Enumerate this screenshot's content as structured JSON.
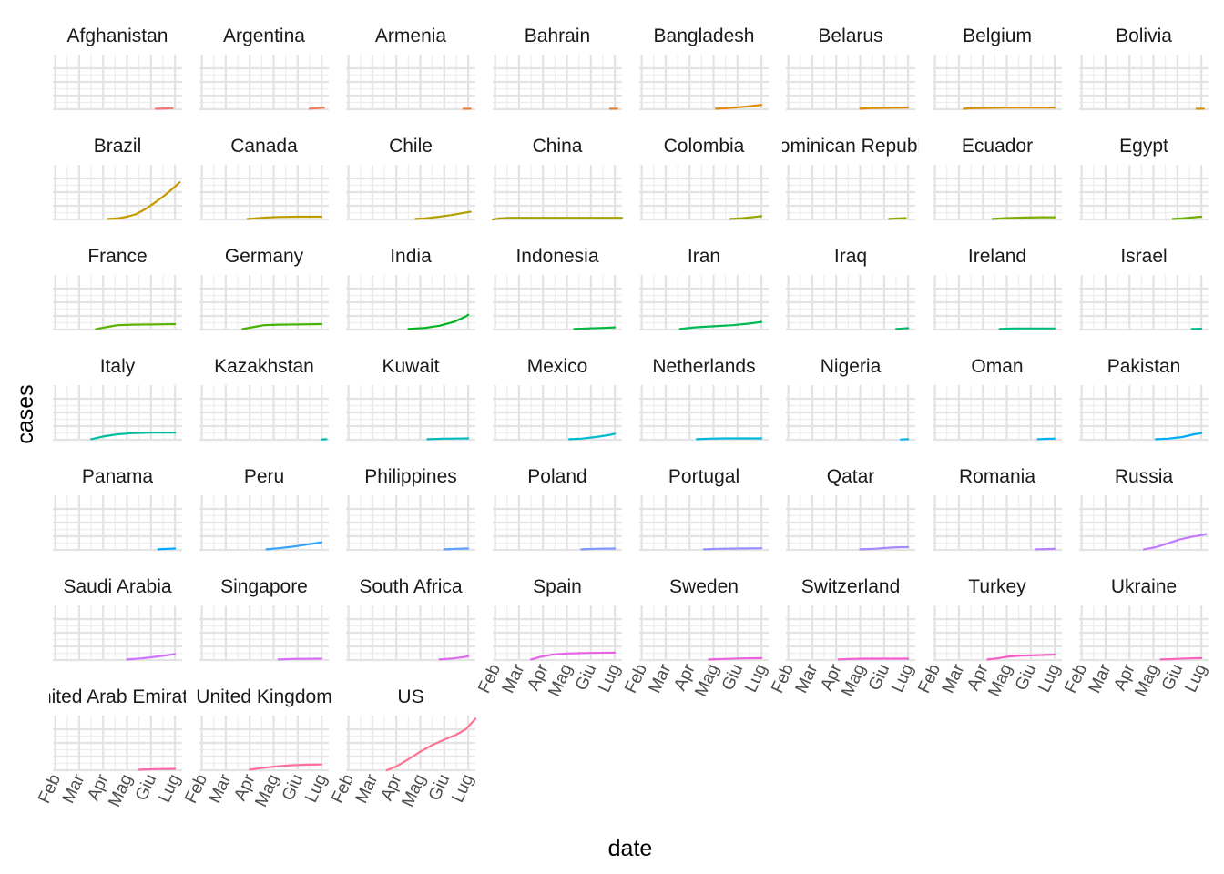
{
  "chart_data": {
    "type": "line",
    "layout": "facet-wrap",
    "xlabel": "date",
    "ylabel": "cases",
    "x_ticks": [
      "Feb",
      "Mar",
      "Apr",
      "Mag",
      "Giu",
      "Lug"
    ],
    "x_tick_months": [
      0,
      1,
      2,
      3,
      4,
      5
    ],
    "xlim_months": [
      -0.1,
      5.3
    ],
    "ylim": [
      0,
      1
    ],
    "y_gridlines": [
      0.25,
      0.5,
      0.75
    ],
    "legend": "none",
    "series": [
      {
        "name": "Afghanistan",
        "color": "#F8766D",
        "points": [
          [
            4.2,
            0.01
          ],
          [
            4.6,
            0.015
          ],
          [
            4.9,
            0.02
          ]
        ]
      },
      {
        "name": "Argentina",
        "color": "#F47A5A",
        "points": [
          [
            4.5,
            0.01
          ],
          [
            4.8,
            0.02
          ],
          [
            5.1,
            0.03
          ]
        ]
      },
      {
        "name": "Armenia",
        "color": "#EE7F3E",
        "points": [
          [
            4.8,
            0.01
          ],
          [
            5.1,
            0.012
          ]
        ]
      },
      {
        "name": "Bahrain",
        "color": "#E9842C",
        "points": [
          [
            4.8,
            0.01
          ],
          [
            5.1,
            0.012
          ]
        ]
      },
      {
        "name": "Bangladesh",
        "color": "#E38900",
        "points": [
          [
            3.1,
            0.01
          ],
          [
            3.5,
            0.02
          ],
          [
            4.0,
            0.035
          ],
          [
            4.5,
            0.055
          ],
          [
            5.0,
            0.08
          ]
        ]
      },
      {
        "name": "Belarus",
        "color": "#DD8D00",
        "points": [
          [
            3.0,
            0.01
          ],
          [
            3.4,
            0.02
          ],
          [
            4.0,
            0.025
          ],
          [
            4.5,
            0.028
          ],
          [
            5.0,
            0.03
          ]
        ]
      },
      {
        "name": "Belgium",
        "color": "#D69100",
        "points": [
          [
            1.2,
            0.01
          ],
          [
            1.6,
            0.02
          ],
          [
            2.2,
            0.025
          ],
          [
            3.0,
            0.03
          ],
          [
            4.0,
            0.03
          ],
          [
            5.0,
            0.03
          ]
        ]
      },
      {
        "name": "Bolivia",
        "color": "#CF9400",
        "points": [
          [
            4.8,
            0.01
          ],
          [
            5.1,
            0.012
          ]
        ]
      },
      {
        "name": "Brazil",
        "color": "#C49A00",
        "points": [
          [
            2.2,
            0.01
          ],
          [
            2.6,
            0.02
          ],
          [
            3.0,
            0.05
          ],
          [
            3.4,
            0.1
          ],
          [
            3.8,
            0.2
          ],
          [
            4.2,
            0.32
          ],
          [
            4.6,
            0.45
          ],
          [
            5.0,
            0.6
          ],
          [
            5.2,
            0.68
          ]
        ]
      },
      {
        "name": "Canada",
        "color": "#BB9D00",
        "points": [
          [
            1.9,
            0.01
          ],
          [
            2.2,
            0.02
          ],
          [
            2.7,
            0.035
          ],
          [
            3.2,
            0.045
          ],
          [
            4.0,
            0.05
          ],
          [
            5.0,
            0.05
          ]
        ]
      },
      {
        "name": "Chile",
        "color": "#B1A000",
        "points": [
          [
            2.8,
            0.01
          ],
          [
            3.2,
            0.02
          ],
          [
            3.8,
            0.05
          ],
          [
            4.3,
            0.08
          ],
          [
            4.8,
            0.12
          ],
          [
            5.1,
            0.14
          ]
        ]
      },
      {
        "name": "China",
        "color": "#A6A300",
        "points": [
          [
            -0.1,
            0.0
          ],
          [
            0.2,
            0.02
          ],
          [
            0.6,
            0.03
          ],
          [
            1.5,
            0.03
          ],
          [
            3.0,
            0.03
          ],
          [
            5.3,
            0.03
          ]
        ]
      },
      {
        "name": "Colombia",
        "color": "#9AA600",
        "points": [
          [
            3.7,
            0.01
          ],
          [
            4.1,
            0.02
          ],
          [
            4.6,
            0.04
          ],
          [
            5.0,
            0.06
          ]
        ]
      },
      {
        "name": "Dominican Republic",
        "color": "#8DA900",
        "points": [
          [
            4.2,
            0.01
          ],
          [
            4.6,
            0.02
          ],
          [
            4.9,
            0.025
          ]
        ]
      },
      {
        "name": "Ecuador",
        "color": "#7FAC00",
        "points": [
          [
            2.4,
            0.01
          ],
          [
            3.0,
            0.025
          ],
          [
            3.8,
            0.035
          ],
          [
            4.5,
            0.04
          ],
          [
            5.0,
            0.04
          ]
        ]
      },
      {
        "name": "Egypt",
        "color": "#6FAE00",
        "points": [
          [
            3.8,
            0.01
          ],
          [
            4.2,
            0.02
          ],
          [
            4.7,
            0.04
          ],
          [
            5.0,
            0.05
          ]
        ]
      },
      {
        "name": "France",
        "color": "#5DB100",
        "points": [
          [
            1.7,
            0.01
          ],
          [
            2.2,
            0.05
          ],
          [
            2.6,
            0.08
          ],
          [
            3.2,
            0.09
          ],
          [
            4.2,
            0.095
          ],
          [
            5.0,
            0.1
          ]
        ]
      },
      {
        "name": "Germany",
        "color": "#45B300",
        "points": [
          [
            1.7,
            0.01
          ],
          [
            2.2,
            0.05
          ],
          [
            2.6,
            0.08
          ],
          [
            3.2,
            0.09
          ],
          [
            4.2,
            0.095
          ],
          [
            5.0,
            0.1
          ]
        ]
      },
      {
        "name": "India",
        "color": "#00B520",
        "points": [
          [
            2.5,
            0.01
          ],
          [
            3.2,
            0.03
          ],
          [
            3.8,
            0.07
          ],
          [
            4.4,
            0.14
          ],
          [
            4.9,
            0.24
          ],
          [
            5.0,
            0.27
          ]
        ]
      },
      {
        "name": "Indonesia",
        "color": "#00B73F",
        "points": [
          [
            3.3,
            0.01
          ],
          [
            3.8,
            0.02
          ],
          [
            4.5,
            0.03
          ],
          [
            5.0,
            0.04
          ]
        ]
      },
      {
        "name": "Iran",
        "color": "#00B956",
        "points": [
          [
            1.6,
            0.01
          ],
          [
            2.2,
            0.04
          ],
          [
            3.0,
            0.06
          ],
          [
            3.8,
            0.08
          ],
          [
            4.5,
            0.11
          ],
          [
            5.0,
            0.14
          ]
        ]
      },
      {
        "name": "Iraq",
        "color": "#00BA6A",
        "points": [
          [
            4.5,
            0.01
          ],
          [
            4.8,
            0.02
          ],
          [
            5.0,
            0.025
          ]
        ]
      },
      {
        "name": "Ireland",
        "color": "#00BB7D",
        "points": [
          [
            2.7,
            0.01
          ],
          [
            3.2,
            0.02
          ],
          [
            4.0,
            0.02
          ],
          [
            5.0,
            0.02
          ]
        ]
      },
      {
        "name": "Israel",
        "color": "#00BC8F",
        "points": [
          [
            4.6,
            0.01
          ],
          [
            4.9,
            0.015
          ],
          [
            5.0,
            0.015
          ]
        ]
      },
      {
        "name": "Italy",
        "color": "#00BDA0",
        "points": [
          [
            1.5,
            0.01
          ],
          [
            2.0,
            0.06
          ],
          [
            2.6,
            0.1
          ],
          [
            3.2,
            0.12
          ],
          [
            4.0,
            0.13
          ],
          [
            5.0,
            0.13
          ]
        ]
      },
      {
        "name": "Kazakhstan",
        "color": "#00BDB0",
        "points": [
          [
            5.0,
            0.005
          ],
          [
            5.2,
            0.01
          ]
        ]
      },
      {
        "name": "Kuwait",
        "color": "#00BCC0",
        "points": [
          [
            3.3,
            0.01
          ],
          [
            4.0,
            0.02
          ],
          [
            5.0,
            0.025
          ]
        ]
      },
      {
        "name": "Mexico",
        "color": "#00BACE",
        "points": [
          [
            3.1,
            0.01
          ],
          [
            3.6,
            0.02
          ],
          [
            4.2,
            0.05
          ],
          [
            4.8,
            0.09
          ],
          [
            5.0,
            0.11
          ]
        ]
      },
      {
        "name": "Netherlands",
        "color": "#00B8DC",
        "points": [
          [
            2.3,
            0.01
          ],
          [
            2.8,
            0.02
          ],
          [
            3.5,
            0.025
          ],
          [
            5.0,
            0.025
          ]
        ]
      },
      {
        "name": "Nigeria",
        "color": "#00B5E8",
        "points": [
          [
            4.7,
            0.005
          ],
          [
            5.0,
            0.012
          ]
        ]
      },
      {
        "name": "Oman",
        "color": "#00B1F3",
        "points": [
          [
            4.3,
            0.01
          ],
          [
            4.8,
            0.02
          ],
          [
            5.0,
            0.02
          ]
        ]
      },
      {
        "name": "Pakistan",
        "color": "#00ADFA",
        "points": [
          [
            3.1,
            0.01
          ],
          [
            3.6,
            0.02
          ],
          [
            4.2,
            0.05
          ],
          [
            4.7,
            0.1
          ],
          [
            5.0,
            0.12
          ]
        ]
      },
      {
        "name": "Panama",
        "color": "#00A8FF",
        "points": [
          [
            4.3,
            0.01
          ],
          [
            4.7,
            0.02
          ],
          [
            5.0,
            0.025
          ]
        ]
      },
      {
        "name": "Peru",
        "color": "#35A2FF",
        "points": [
          [
            2.7,
            0.01
          ],
          [
            3.2,
            0.03
          ],
          [
            3.8,
            0.06
          ],
          [
            4.4,
            0.1
          ],
          [
            5.0,
            0.14
          ]
        ]
      },
      {
        "name": "Philippines",
        "color": "#619CFF",
        "points": [
          [
            4.0,
            0.01
          ],
          [
            4.5,
            0.02
          ],
          [
            5.0,
            0.025
          ]
        ]
      },
      {
        "name": "Poland",
        "color": "#7E96FF",
        "points": [
          [
            3.6,
            0.01
          ],
          [
            4.2,
            0.02
          ],
          [
            5.0,
            0.025
          ]
        ]
      },
      {
        "name": "Portugal",
        "color": "#948FFF",
        "points": [
          [
            2.6,
            0.01
          ],
          [
            3.2,
            0.02
          ],
          [
            4.0,
            0.025
          ],
          [
            5.0,
            0.03
          ]
        ]
      },
      {
        "name": "Qatar",
        "color": "#A688FF",
        "points": [
          [
            3.0,
            0.01
          ],
          [
            3.6,
            0.02
          ],
          [
            4.2,
            0.04
          ],
          [
            4.7,
            0.05
          ],
          [
            5.0,
            0.05
          ]
        ]
      },
      {
        "name": "Romania",
        "color": "#B581FF",
        "points": [
          [
            4.2,
            0.01
          ],
          [
            4.6,
            0.015
          ],
          [
            5.0,
            0.02
          ]
        ]
      },
      {
        "name": "Russia",
        "color": "#C17AFF",
        "points": [
          [
            2.6,
            0.01
          ],
          [
            3.1,
            0.05
          ],
          [
            3.6,
            0.12
          ],
          [
            4.1,
            0.19
          ],
          [
            4.6,
            0.24
          ],
          [
            5.0,
            0.27
          ],
          [
            5.2,
            0.29
          ]
        ]
      },
      {
        "name": "Saudi Arabia",
        "color": "#CC74FB",
        "points": [
          [
            3.0,
            0.01
          ],
          [
            3.6,
            0.03
          ],
          [
            4.2,
            0.06
          ],
          [
            4.7,
            0.09
          ],
          [
            5.0,
            0.11
          ]
        ]
      },
      {
        "name": "Singapore",
        "color": "#D56DF5",
        "points": [
          [
            3.2,
            0.01
          ],
          [
            3.8,
            0.02
          ],
          [
            5.0,
            0.025
          ]
        ]
      },
      {
        "name": "South Africa",
        "color": "#DE67EE",
        "points": [
          [
            3.8,
            0.01
          ],
          [
            4.4,
            0.03
          ],
          [
            4.9,
            0.06
          ],
          [
            5.0,
            0.07
          ]
        ]
      },
      {
        "name": "Spain",
        "color": "#E563E6",
        "points": [
          [
            1.5,
            0.01
          ],
          [
            1.9,
            0.06
          ],
          [
            2.4,
            0.1
          ],
          [
            3.0,
            0.12
          ],
          [
            4.0,
            0.13
          ],
          [
            5.0,
            0.135
          ]
        ]
      },
      {
        "name": "Sweden",
        "color": "#EB60DC",
        "points": [
          [
            2.8,
            0.01
          ],
          [
            3.4,
            0.02
          ],
          [
            4.2,
            0.03
          ],
          [
            5.0,
            0.035
          ]
        ]
      },
      {
        "name": "Switzerland",
        "color": "#F05ED2",
        "points": [
          [
            2.1,
            0.01
          ],
          [
            2.6,
            0.02
          ],
          [
            3.3,
            0.025
          ],
          [
            4.5,
            0.025
          ],
          [
            5.0,
            0.025
          ]
        ]
      },
      {
        "name": "Turkey",
        "color": "#F45EC6",
        "points": [
          [
            2.2,
            0.01
          ],
          [
            2.6,
            0.03
          ],
          [
            3.0,
            0.06
          ],
          [
            3.6,
            0.08
          ],
          [
            4.3,
            0.09
          ],
          [
            5.0,
            0.1
          ]
        ]
      },
      {
        "name": "Ukraine",
        "color": "#F862BA",
        "points": [
          [
            3.3,
            0.01
          ],
          [
            3.9,
            0.02
          ],
          [
            4.5,
            0.03
          ],
          [
            5.0,
            0.035
          ]
        ]
      },
      {
        "name": "United Arab Emirates",
        "color": "#FA67AD",
        "points": [
          [
            3.5,
            0.01
          ],
          [
            4.2,
            0.02
          ],
          [
            5.0,
            0.025
          ]
        ]
      },
      {
        "name": "United Kingdom",
        "color": "#FB6E9E",
        "points": [
          [
            2.0,
            0.01
          ],
          [
            2.5,
            0.04
          ],
          [
            3.1,
            0.07
          ],
          [
            3.7,
            0.09
          ],
          [
            4.3,
            0.1
          ],
          [
            5.0,
            0.105
          ]
        ]
      },
      {
        "name": "US",
        "color": "#FB7590",
        "points": [
          [
            1.6,
            0.0
          ],
          [
            2.0,
            0.07
          ],
          [
            2.5,
            0.2
          ],
          [
            3.0,
            0.34
          ],
          [
            3.5,
            0.46
          ],
          [
            4.0,
            0.56
          ],
          [
            4.5,
            0.65
          ],
          [
            4.9,
            0.75
          ],
          [
            5.3,
            0.94
          ]
        ]
      }
    ]
  }
}
